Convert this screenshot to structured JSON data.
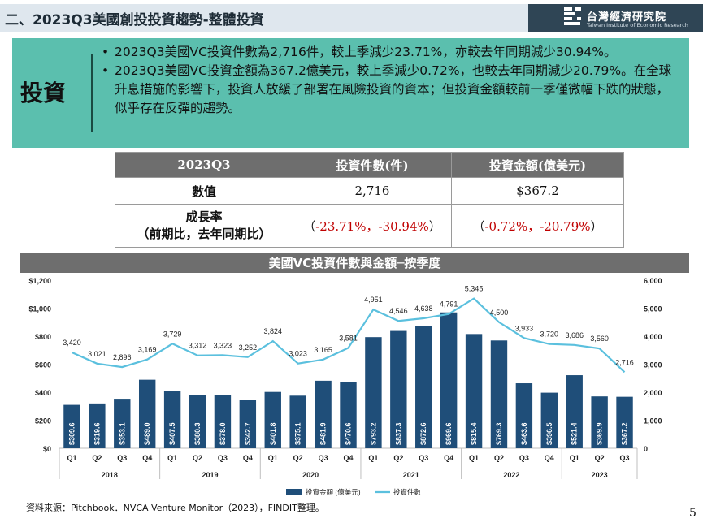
{
  "header": {
    "title": "二、2023Q3美國創投投資趨勢-整體投資",
    "logo_cn": "台灣經濟研究院",
    "logo_en": "Taiwan Institute of Economic Research"
  },
  "summary": {
    "label": "投資",
    "bullets": [
      "2023Q3美國VC投資件數為2,716件，較上季減少23.71%，亦較去年同期減少30.94%。",
      "2023Q3美國VC投資金額為367.2億美元，較上季減少0.72%，也較去年同期減少20.79%。在全球升息措施的影響下，投資人放緩了部署在風險投資的資本；但投資金額較前一季僅微幅下跌的狀態，似乎存在反彈的趨勢。"
    ]
  },
  "table": {
    "headers": [
      "2023Q3",
      "投資件數(件)",
      "投資金額(億美元)"
    ],
    "value_row": {
      "label": "數值",
      "count": "2,716",
      "amount": "$367.2"
    },
    "growth_row": {
      "label_line1": "成長率",
      "label_line2": "（前期比，去年同期比）",
      "count_open": "（",
      "count_qoq": "-23.71%",
      "count_sep": "，",
      "count_yoy": "-30.94%",
      "count_close": "）",
      "amount_open": "（",
      "amount_qoq": "-0.72%",
      "amount_sep": "，",
      "amount_yoy": "-20.79%",
      "amount_close": "）"
    }
  },
  "chart_title": "美國VC投資件數與金額─按季度",
  "chart_data": {
    "type": "bar",
    "title": "美國VC投資件數與金額─按季度",
    "categories": [
      "Q1",
      "Q2",
      "Q3",
      "Q4",
      "Q1",
      "Q2",
      "Q3",
      "Q4",
      "Q1",
      "Q2",
      "Q3",
      "Q4",
      "Q1",
      "Q2",
      "Q3",
      "Q4",
      "Q1",
      "Q2",
      "Q3",
      "Q4",
      "Q1",
      "Q2",
      "Q3"
    ],
    "years": [
      "2018",
      "2019",
      "2020",
      "2021",
      "2022",
      "2023"
    ],
    "series": [
      {
        "name": "投資金額 (億美元)",
        "type": "bar",
        "axis": "left",
        "color": "#1f4e79",
        "values": [
          309.6,
          319.6,
          353.1,
          489.0,
          407.5,
          380.3,
          378.0,
          342.7,
          401.8,
          375.1,
          481.9,
          470.6,
          793.2,
          837.3,
          872.6,
          969.6,
          815.4,
          769.3,
          463.6,
          396.5,
          521.4,
          369.9,
          367.2
        ],
        "labels": [
          "$309.6",
          "$319.6",
          "$353.1",
          "$489.0",
          "$407.5",
          "$380.3",
          "$378.0",
          "$342.7",
          "$401.8",
          "$375.1",
          "$481.9",
          "$470.6",
          "$793.2",
          "$837.3",
          "$872.6",
          "$969.6",
          "$815.4",
          "$769.3",
          "$463.6",
          "$396.5",
          "$521.4",
          "$369.9",
          "$367.2"
        ]
      },
      {
        "name": "投資件數",
        "type": "line",
        "axis": "right",
        "color": "#5bc0de",
        "values": [
          3420,
          3021,
          2896,
          3169,
          3729,
          3312,
          3323,
          3252,
          3824,
          3023,
          3165,
          3581,
          4951,
          4546,
          4638,
          4791,
          5345,
          4500,
          3933,
          3720,
          3686,
          3560,
          2716
        ],
        "labels": [
          "3,420",
          "3,021",
          "2,896",
          "3,169",
          "3,729",
          "3,312",
          "3,323",
          "3,252",
          "3,824",
          "3,023",
          "3,165",
          "3,581",
          "4,951",
          "4,546",
          "4,638",
          "4,791",
          "5,345",
          "4,500",
          "3,933",
          "3,720",
          "3,686",
          "3,560",
          "2,716"
        ]
      }
    ],
    "y_left": {
      "min": 0,
      "max": 1200,
      "ticks": [
        "$0",
        "$200",
        "$400",
        "$600",
        "$800",
        "$1,000",
        "$1,200"
      ]
    },
    "y_right": {
      "min": 0,
      "max": 6000,
      "ticks": [
        "0",
        "1,000",
        "2,000",
        "3,000",
        "4,000",
        "5,000",
        "6,000"
      ]
    },
    "legend_position": "bottom",
    "grid": false
  },
  "source": "資料來源：Pitchbook．NVCA Venture Monitor（2023），FINDIT整理。",
  "page_number": "5",
  "colors": {
    "accent": "#5bbfae",
    "bar": "#1f4e79",
    "line": "#5bc0de",
    "header_dark": "#2f4555",
    "table_header": "#6e6e6e",
    "negative": "#c00000"
  }
}
